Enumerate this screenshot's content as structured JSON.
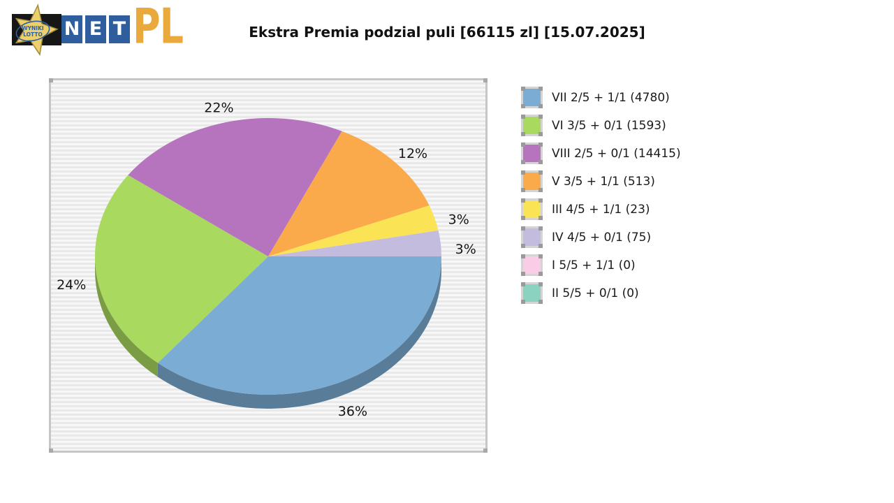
{
  "title": "Ekstra Premia podzial puli [66115 zl] [15.07.2025]",
  "logo": {
    "wyniki": "WYNIKI",
    "lotto": "LOTTO",
    "net": [
      "N",
      "E",
      "T"
    ],
    "pl": "PL"
  },
  "chart_data": {
    "type": "pie",
    "title": "Ekstra Premia podzial puli [66115 zl] [15.07.2025]",
    "pool_total": "66115 zl",
    "date": "15.07.2025",
    "effect": "3d",
    "legend_position": "right",
    "start_angle_deg": 0,
    "direction": "clockwise",
    "background_stripes": [
      "#F7F7F7",
      "#E9E9E9"
    ],
    "slices": [
      {
        "label": "VII 2/5 + 1/1",
        "count": 4780,
        "percent": 36,
        "color": "#7BACD3"
      },
      {
        "label": "VI 3/5 + 0/1",
        "count": 1593,
        "percent": 24,
        "color": "#A9D95E"
      },
      {
        "label": "VIII 2/5 + 0/1",
        "count": 14415,
        "percent": 22,
        "color": "#B674BF"
      },
      {
        "label": "V 3/5 + 1/1",
        "count": 513,
        "percent": 12,
        "color": "#FAAA4B"
      },
      {
        "label": "III 4/5 + 1/1",
        "count": 23,
        "percent": 3,
        "color": "#FAE354"
      },
      {
        "label": "IV 4/5 + 0/1",
        "count": 75,
        "percent": 3,
        "color": "#C4BCDF"
      },
      {
        "label": "I 5/5 + 1/1",
        "count": 0,
        "percent": 0,
        "color": "#FBCCE5"
      },
      {
        "label": "II 5/5 + 0/1",
        "count": 0,
        "percent": 0,
        "color": "#8BD2C0"
      }
    ]
  }
}
